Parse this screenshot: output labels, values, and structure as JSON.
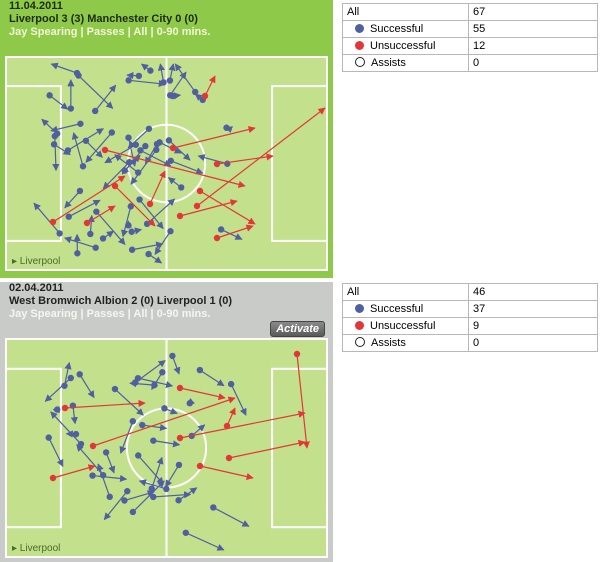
{
  "matches": [
    {
      "date": "11.04.2011",
      "title": "Liverpool 3 (3) Manchester City 0 (0)",
      "subtitle": "Jay Spearing | Passes | All | 0-90 mins.",
      "pitch_label": "▸ Liverpool",
      "stats": {
        "all_label": "All",
        "all_value": "67",
        "successful_label": "Successful",
        "successful_value": "55",
        "unsuccessful_label": "Unsuccessful",
        "unsuccessful_value": "12",
        "assists_label": "Assists",
        "assists_value": "0"
      }
    },
    {
      "date": "02.04.2011",
      "title": "West Bromwich Albion 2 (0) Liverpool 1 (0)",
      "subtitle": "Jay Spearing | Passes | All | 0-90 mins.",
      "activate_label": "Activate",
      "pitch_label": "▸ Liverpool",
      "stats": {
        "all_label": "All",
        "all_value": "46",
        "successful_label": "Successful",
        "successful_value": "37",
        "unsuccessful_label": "Unsuccessful",
        "unsuccessful_value": "9",
        "assists_label": "Assists",
        "assists_value": "0"
      }
    }
  ],
  "colors": {
    "successful": "#4f5fa0",
    "unsuccessful": "#e33737",
    "pitch": "#c3e08d",
    "pitch_lines": "#ffffff"
  }
}
